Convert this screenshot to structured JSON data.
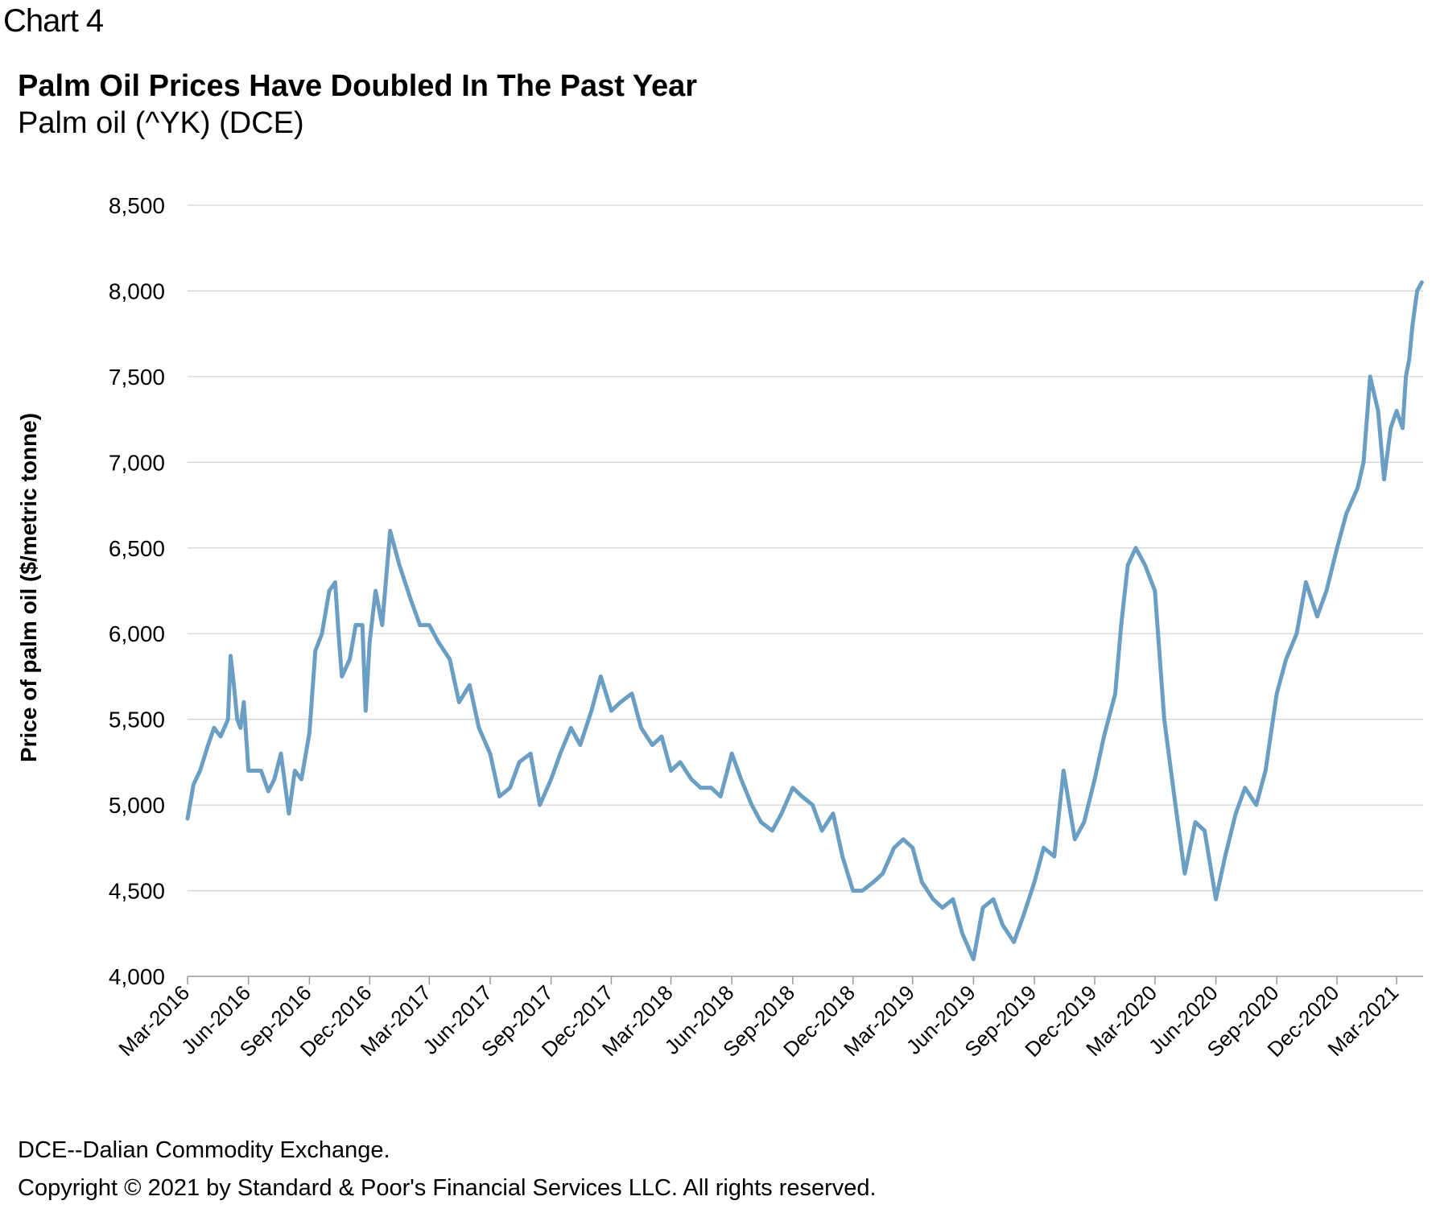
{
  "header": {
    "chart_number": "Chart 4",
    "title": "Palm Oil Prices Have Doubled In The Past Year",
    "subtitle": "Palm oil (^YK) (DCE)"
  },
  "footer": {
    "note": "DCE--Dalian Commodity Exchange.",
    "copyright": "Copyright © 2021 by Standard & Poor's Financial Services LLC. All rights reserved."
  },
  "chart_data": {
    "type": "line",
    "title": "Palm Oil Prices Have Doubled In The Past Year",
    "subtitle": "Palm oil (^YK) (DCE)",
    "xlabel": "",
    "ylabel": "Price of palm oil ($/metric tonne)",
    "ylim": [
      4000,
      8500
    ],
    "yticks": [
      4000,
      4500,
      5000,
      5500,
      6000,
      6500,
      7000,
      7500,
      8000,
      8500
    ],
    "ytick_labels": [
      "4,000",
      "4,500",
      "5,000",
      "5,500",
      "6,000",
      "6,500",
      "7,000",
      "7,500",
      "8,000",
      "8,500"
    ],
    "xlim": [
      "2016-03-01",
      "2021-04-10"
    ],
    "xtick_labels": [
      "Mar-2016",
      "Jun-2016",
      "Sep-2016",
      "Dec-2016",
      "Mar-2017",
      "Jun-2017",
      "Sep-2017",
      "Dec-2017",
      "Mar-2018",
      "Jun-2018",
      "Sep-2018",
      "Dec-2018",
      "Mar-2019",
      "Jun-2019",
      "Sep-2019",
      "Dec-2019",
      "Mar-2020",
      "Jun-2020",
      "Sep-2020",
      "Dec-2020",
      "Mar-2021"
    ],
    "grid": "horizontal",
    "legend": "none",
    "line_color": "#6a9ec3",
    "series": [
      {
        "x": [
          "2016-03-01",
          "2016-03-10",
          "2016-03-20",
          "2016-04-01",
          "2016-04-10",
          "2016-04-20",
          "2016-05-01",
          "2016-05-05",
          "2016-05-10",
          "2016-05-15",
          "2016-05-20",
          "2016-05-25",
          "2016-06-01",
          "2016-06-10",
          "2016-06-20",
          "2016-07-01",
          "2016-07-10",
          "2016-07-20",
          "2016-08-01",
          "2016-08-10",
          "2016-08-20",
          "2016-09-01",
          "2016-09-10",
          "2016-09-20",
          "2016-10-01",
          "2016-10-10",
          "2016-10-15",
          "2016-10-20",
          "2016-11-01",
          "2016-11-10",
          "2016-11-20",
          "2016-11-25",
          "2016-12-01",
          "2016-12-10",
          "2016-12-20",
          "2017-01-01",
          "2017-01-15",
          "2017-02-01",
          "2017-02-15",
          "2017-03-01",
          "2017-03-15",
          "2017-04-01",
          "2017-04-15",
          "2017-05-01",
          "2017-05-15",
          "2017-06-01",
          "2017-06-15",
          "2017-07-01",
          "2017-07-15",
          "2017-08-01",
          "2017-08-15",
          "2017-09-01",
          "2017-09-15",
          "2017-10-01",
          "2017-10-15",
          "2017-11-01",
          "2017-11-15",
          "2017-12-01",
          "2017-12-15",
          "2018-01-01",
          "2018-01-15",
          "2018-02-01",
          "2018-02-15",
          "2018-03-01",
          "2018-03-15",
          "2018-04-01",
          "2018-04-15",
          "2018-05-01",
          "2018-05-15",
          "2018-06-01",
          "2018-06-15",
          "2018-07-01",
          "2018-07-15",
          "2018-08-01",
          "2018-08-15",
          "2018-09-01",
          "2018-09-15",
          "2018-10-01",
          "2018-10-15",
          "2018-11-01",
          "2018-11-15",
          "2018-12-01",
          "2018-12-15",
          "2019-01-01",
          "2019-01-15",
          "2019-02-01",
          "2019-02-15",
          "2019-03-01",
          "2019-03-15",
          "2019-04-01",
          "2019-04-15",
          "2019-05-01",
          "2019-05-15",
          "2019-06-01",
          "2019-06-15",
          "2019-07-01",
          "2019-07-15",
          "2019-08-01",
          "2019-08-15",
          "2019-09-01",
          "2019-09-15",
          "2019-10-01",
          "2019-10-15",
          "2019-11-01",
          "2019-11-15",
          "2019-12-01",
          "2019-12-15",
          "2020-01-01",
          "2020-01-10",
          "2020-01-20",
          "2020-02-01",
          "2020-02-15",
          "2020-03-01",
          "2020-03-15",
          "2020-04-01",
          "2020-04-15",
          "2020-05-01",
          "2020-05-15",
          "2020-06-01",
          "2020-06-15",
          "2020-07-01",
          "2020-07-15",
          "2020-08-01",
          "2020-08-15",
          "2020-09-01",
          "2020-09-15",
          "2020-10-01",
          "2020-10-15",
          "2020-11-01",
          "2020-11-15",
          "2020-12-01",
          "2020-12-15",
          "2021-01-01",
          "2021-01-10",
          "2021-01-20",
          "2021-02-01",
          "2021-02-10",
          "2021-02-20",
          "2021-03-01",
          "2021-03-10",
          "2021-03-15",
          "2021-03-20",
          "2021-03-25",
          "2021-04-01",
          "2021-04-08"
        ],
        "y": [
          4920,
          5120,
          5200,
          5350,
          5450,
          5400,
          5500,
          5870,
          5700,
          5500,
          5450,
          5600,
          5200,
          5200,
          5200,
          5080,
          5150,
          5300,
          4950,
          5200,
          5150,
          5420,
          5900,
          6000,
          6250,
          6300,
          6000,
          5750,
          5850,
          6050,
          6050,
          5550,
          5950,
          6250,
          6050,
          6600,
          6400,
          6200,
          6050,
          6050,
          5950,
          5850,
          5600,
          5700,
          5450,
          5300,
          5050,
          5100,
          5250,
          5300,
          5000,
          5150,
          5300,
          5450,
          5350,
          5550,
          5750,
          5550,
          5600,
          5650,
          5450,
          5350,
          5400,
          5200,
          5250,
          5150,
          5100,
          5100,
          5050,
          5300,
          5150,
          5000,
          4900,
          4850,
          4950,
          5100,
          5050,
          5000,
          4850,
          4950,
          4700,
          4500,
          4500,
          4550,
          4600,
          4750,
          4800,
          4750,
          4550,
          4450,
          4400,
          4450,
          4250,
          4100,
          4400,
          4450,
          4300,
          4200,
          4350,
          4550,
          4750,
          4700,
          5200,
          4800,
          4900,
          5150,
          5400,
          5650,
          6050,
          6400,
          6500,
          6400,
          6250,
          5500,
          5000,
          4600,
          4900,
          4850,
          4450,
          4700,
          4950,
          5100,
          5000,
          5200,
          5650,
          5850,
          6000,
          6300,
          6100,
          6250,
          6500,
          6700,
          6850,
          7000,
          7500,
          7300,
          6900,
          7200,
          7300,
          7200,
          7500,
          7600,
          7800,
          8000,
          8050
        ]
      }
    ]
  }
}
